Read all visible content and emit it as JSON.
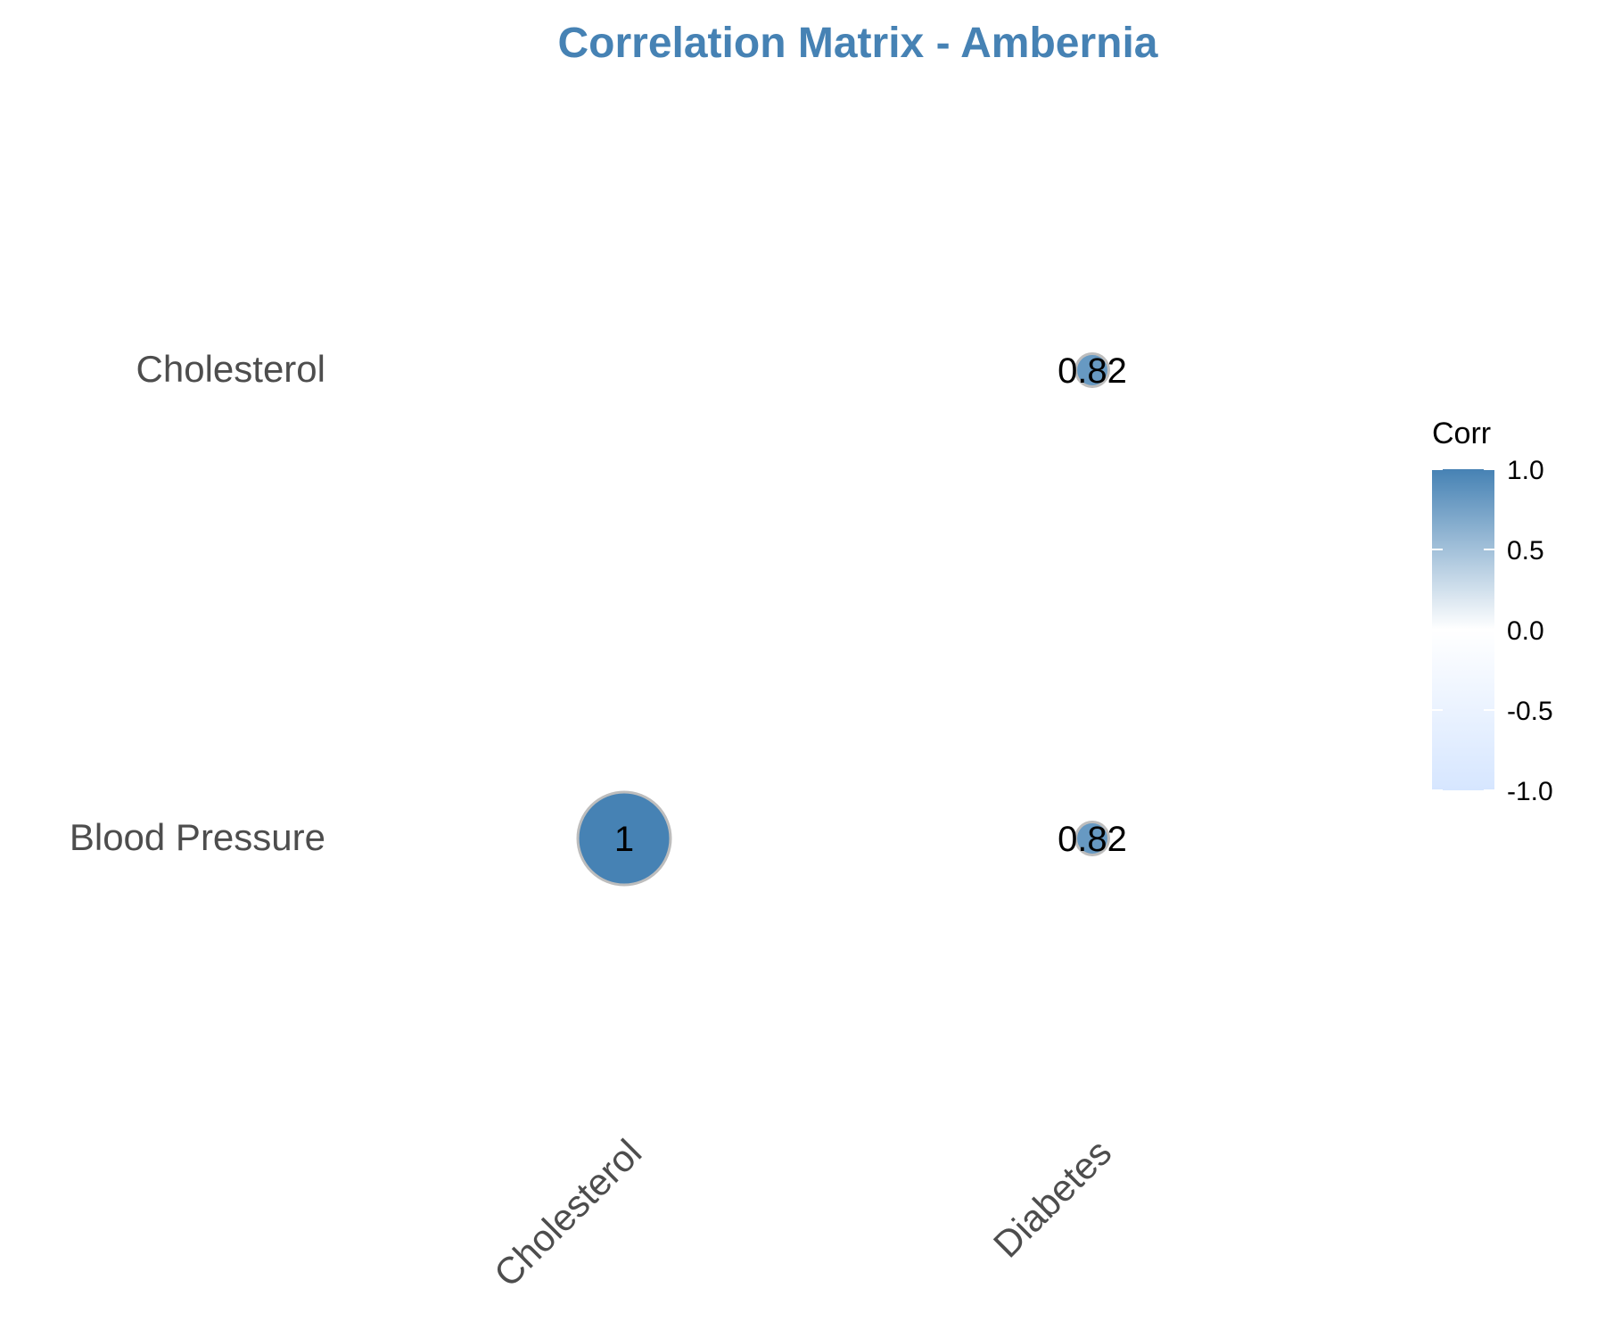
{
  "chart_data": {
    "type": "heatmap",
    "title": "Correlation Matrix - Ambernia",
    "x_categories": [
      "Cholesterol",
      "Diabetes"
    ],
    "y_categories": [
      "Cholesterol",
      "Blood Pressure"
    ],
    "cells": [
      {
        "x": "Diabetes",
        "y": "Cholesterol",
        "value": 0.82,
        "label": "0.82"
      },
      {
        "x": "Cholesterol",
        "y": "Blood Pressure",
        "value": 1,
        "label": "1"
      },
      {
        "x": "Diabetes",
        "y": "Blood Pressure",
        "value": 0.82,
        "label": "0.82"
      }
    ],
    "legend": {
      "title": "Corr",
      "placement": "right",
      "range": [
        -1,
        1
      ],
      "ticks": [
        "1.0",
        "0.5",
        "0.0",
        "-0.5",
        "-1.0"
      ],
      "tick_values": [
        1,
        0.5,
        0,
        -0.5,
        -1
      ]
    },
    "colors": {
      "high": "#4682b4",
      "mid": "#ffffff",
      "low": "#d6e6ff",
      "title": "#4682b4"
    }
  }
}
